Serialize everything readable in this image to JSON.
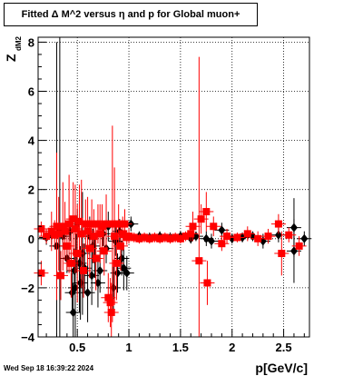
{
  "title": "Fitted Δ M^2 versus η and p for Global muon+",
  "footer": "Wed Sep 18 16:39:22 2024",
  "chart_data": {
    "type": "scatter",
    "xlabel": "p[GeV/c]",
    "ylabel": "Z",
    "ylabel_sub": "dM2",
    "xlim": [
      0.12,
      2.75
    ],
    "ylim": [
      -4.0,
      8.2
    ],
    "xticks": [
      0.5,
      1,
      1.5,
      2,
      2.5
    ],
    "xtick_labels": [
      "0.5",
      "1",
      "1.5",
      "2",
      "2.5"
    ],
    "yticks": [
      -4,
      -2,
      0,
      2,
      4,
      6,
      8
    ],
    "ytick_labels": [
      "−4",
      "−2",
      "0",
      "2",
      "4",
      "6",
      "8"
    ],
    "grid": true,
    "colors": {
      "black_series": "#000000",
      "red_series": "#ff0000"
    },
    "series": [
      {
        "color": "black",
        "marker": "diamond",
        "points": [
          {
            "x": 0.2,
            "y": 0.05,
            "err": 0.3
          },
          {
            "x": 0.25,
            "y": 0.15,
            "err": 0.4
          },
          {
            "x": 0.3,
            "y": -0.3,
            "err": 8.3
          },
          {
            "x": 0.33,
            "y": 0.4,
            "err": 8.3
          },
          {
            "x": 0.36,
            "y": 0.1,
            "err": 0.5
          },
          {
            "x": 0.4,
            "y": -0.8,
            "err": 0.6
          },
          {
            "x": 0.43,
            "y": 0.3,
            "err": 0.4
          },
          {
            "x": 0.45,
            "y": -2.2,
            "err": 0.8
          },
          {
            "x": 0.46,
            "y": -3.0,
            "err": 1.2
          },
          {
            "x": 0.47,
            "y": -1.3,
            "err": 0.9
          },
          {
            "x": 0.48,
            "y": -2.0,
            "err": 3.0
          },
          {
            "x": 0.49,
            "y": -0.6,
            "err": 0.8
          },
          {
            "x": 0.5,
            "y": 0.6,
            "err": 0.6
          },
          {
            "x": 0.52,
            "y": -1.0,
            "err": 2.0
          },
          {
            "x": 0.53,
            "y": -1.8,
            "err": 1.5
          },
          {
            "x": 0.55,
            "y": -0.6,
            "err": 2.5
          },
          {
            "x": 0.57,
            "y": -1.2,
            "err": 1.0
          },
          {
            "x": 0.6,
            "y": -2.2,
            "err": 1.2
          },
          {
            "x": 0.62,
            "y": 0.1,
            "err": 0.8
          },
          {
            "x": 0.64,
            "y": -1.5,
            "err": 1.2
          },
          {
            "x": 0.65,
            "y": -0.3,
            "err": 0.7
          },
          {
            "x": 0.67,
            "y": -0.8,
            "err": 0.8
          },
          {
            "x": 0.7,
            "y": -1.8,
            "err": 1.0
          },
          {
            "x": 0.72,
            "y": -1.3,
            "err": 0.9
          },
          {
            "x": 0.75,
            "y": 0.2,
            "err": 0.5
          },
          {
            "x": 0.78,
            "y": -0.4,
            "err": 0.6
          },
          {
            "x": 0.8,
            "y": 0.5,
            "err": 0.6
          },
          {
            "x": 0.85,
            "y": -2.0,
            "err": 0.9
          },
          {
            "x": 0.87,
            "y": -0.1,
            "err": 0.6
          },
          {
            "x": 0.89,
            "y": -1.4,
            "err": 0.8
          },
          {
            "x": 0.91,
            "y": 0.3,
            "err": 0.5
          },
          {
            "x": 0.93,
            "y": -0.8,
            "err": 0.7
          },
          {
            "x": 0.95,
            "y": -1.2,
            "err": 0.9
          },
          {
            "x": 0.98,
            "y": -1.4,
            "err": 0.7
          },
          {
            "x": 1.02,
            "y": 0.6,
            "err": 0.3
          },
          {
            "x": 1.1,
            "y": 0.1,
            "err": 0.2
          },
          {
            "x": 1.2,
            "y": 0.05,
            "err": 0.2
          },
          {
            "x": 1.3,
            "y": 0.1,
            "err": 0.2
          },
          {
            "x": 1.4,
            "y": 0.05,
            "err": 0.2
          },
          {
            "x": 1.5,
            "y": 0.1,
            "err": 0.2
          },
          {
            "x": 1.6,
            "y": 0.0,
            "err": 0.2
          },
          {
            "x": 1.65,
            "y": 0.1,
            "err": 0.2
          },
          {
            "x": 1.75,
            "y": 0.0,
            "err": 0.3
          },
          {
            "x": 1.8,
            "y": -0.1,
            "err": 0.3
          },
          {
            "x": 1.9,
            "y": 0.35,
            "err": 0.3
          },
          {
            "x": 2.0,
            "y": 0.0,
            "err": 0.2
          },
          {
            "x": 2.1,
            "y": 0.05,
            "err": 0.2
          },
          {
            "x": 2.2,
            "y": 0.1,
            "err": 0.2
          },
          {
            "x": 2.3,
            "y": -0.1,
            "err": 0.3
          },
          {
            "x": 2.45,
            "y": 0.15,
            "err": 0.3
          },
          {
            "x": 2.6,
            "y": 0.45,
            "err": 1.2
          },
          {
            "x": 2.6,
            "y": -0.5,
            "err": 1.3
          },
          {
            "x": 2.7,
            "y": 0.0,
            "err": 0.3
          }
        ]
      },
      {
        "color": "red",
        "marker": "square",
        "points": [
          {
            "x": 0.15,
            "y": 0.4,
            "err": 0.3
          },
          {
            "x": 0.15,
            "y": -1.4,
            "err": 0.5
          },
          {
            "x": 0.2,
            "y": 0.1,
            "err": 0.3
          },
          {
            "x": 0.25,
            "y": 0.3,
            "err": 0.8
          },
          {
            "x": 0.28,
            "y": 0.15,
            "err": 0.6
          },
          {
            "x": 0.3,
            "y": 0.5,
            "err": 3.0
          },
          {
            "x": 0.32,
            "y": 0.2,
            "err": 1.5
          },
          {
            "x": 0.34,
            "y": -1.5,
            "err": 1.0
          },
          {
            "x": 0.36,
            "y": 0.5,
            "err": 1.8
          },
          {
            "x": 0.38,
            "y": 0.3,
            "err": 1.2
          },
          {
            "x": 0.4,
            "y": -0.3,
            "err": 1.0
          },
          {
            "x": 0.42,
            "y": 0.6,
            "err": 2.0
          },
          {
            "x": 0.44,
            "y": -1.0,
            "err": 1.4
          },
          {
            "x": 0.46,
            "y": 0.8,
            "err": 1.5
          },
          {
            "x": 0.48,
            "y": 0.4,
            "err": 1.8
          },
          {
            "x": 0.5,
            "y": -0.6,
            "err": 2.0
          },
          {
            "x": 0.52,
            "y": 0.7,
            "err": 1.5
          },
          {
            "x": 0.54,
            "y": 0.2,
            "err": 2.2
          },
          {
            "x": 0.56,
            "y": -1.3,
            "err": 1.1
          },
          {
            "x": 0.58,
            "y": 0.6,
            "err": 1.0
          },
          {
            "x": 0.6,
            "y": 0.3,
            "err": 1.4
          },
          {
            "x": 0.62,
            "y": -0.4,
            "err": 1.2
          },
          {
            "x": 0.64,
            "y": 0.6,
            "err": 1.0
          },
          {
            "x": 0.66,
            "y": 0.1,
            "err": 1.1
          },
          {
            "x": 0.68,
            "y": -0.8,
            "err": 1.3
          },
          {
            "x": 0.7,
            "y": 0.6,
            "err": 0.8
          },
          {
            "x": 0.72,
            "y": 0.2,
            "err": 1.2
          },
          {
            "x": 0.74,
            "y": 0.5,
            "err": 0.9
          },
          {
            "x": 0.76,
            "y": -0.5,
            "err": 1.0
          },
          {
            "x": 0.78,
            "y": 0.6,
            "err": 1.2
          },
          {
            "x": 0.8,
            "y": -2.4,
            "err": 1.0
          },
          {
            "x": 0.82,
            "y": -2.6,
            "err": 1.0
          },
          {
            "x": 0.83,
            "y": -3.0,
            "err": 1.2
          },
          {
            "x": 0.84,
            "y": 0.6,
            "err": 4.0
          },
          {
            "x": 0.86,
            "y": 0.1,
            "err": 2.8
          },
          {
            "x": 0.88,
            "y": -1.0,
            "err": 1.5
          },
          {
            "x": 0.9,
            "y": 0.6,
            "err": 0.8
          },
          {
            "x": 0.92,
            "y": -0.3,
            "err": 1.0
          },
          {
            "x": 0.94,
            "y": 0.2,
            "err": 0.7
          },
          {
            "x": 0.96,
            "y": 0.6,
            "err": 0.6
          },
          {
            "x": 0.98,
            "y": 0.05,
            "err": 0.3
          },
          {
            "x": 1.0,
            "y": 0.1,
            "err": 0.3
          },
          {
            "x": 1.05,
            "y": 0.05,
            "err": 0.2
          },
          {
            "x": 1.1,
            "y": 0.0,
            "err": 0.2
          },
          {
            "x": 1.15,
            "y": 0.05,
            "err": 0.2
          },
          {
            "x": 1.2,
            "y": 0.0,
            "err": 0.2
          },
          {
            "x": 1.25,
            "y": 0.05,
            "err": 0.2
          },
          {
            "x": 1.3,
            "y": 0.0,
            "err": 0.2
          },
          {
            "x": 1.35,
            "y": 0.05,
            "err": 0.2
          },
          {
            "x": 1.4,
            "y": 0.0,
            "err": 0.2
          },
          {
            "x": 1.45,
            "y": 0.05,
            "err": 0.2
          },
          {
            "x": 1.5,
            "y": 0.0,
            "err": 0.2
          },
          {
            "x": 1.55,
            "y": 0.1,
            "err": 0.2
          },
          {
            "x": 1.6,
            "y": 0.2,
            "err": 0.3
          },
          {
            "x": 1.62,
            "y": 0.5,
            "err": 0.6
          },
          {
            "x": 1.68,
            "y": -0.9,
            "err": 8.3
          },
          {
            "x": 1.7,
            "y": 0.8,
            "err": 0.6
          },
          {
            "x": 1.75,
            "y": 1.1,
            "err": 0.8
          },
          {
            "x": 1.76,
            "y": -1.8,
            "err": 0.9
          },
          {
            "x": 1.82,
            "y": 0.5,
            "err": 0.4
          },
          {
            "x": 1.9,
            "y": -0.2,
            "err": 0.3
          },
          {
            "x": 1.95,
            "y": 0.1,
            "err": 0.3
          },
          {
            "x": 2.05,
            "y": 0.05,
            "err": 0.2
          },
          {
            "x": 2.15,
            "y": 0.2,
            "err": 0.3
          },
          {
            "x": 2.25,
            "y": 0.0,
            "err": 0.3
          },
          {
            "x": 2.35,
            "y": 0.1,
            "err": 0.3
          },
          {
            "x": 2.45,
            "y": 0.6,
            "err": 0.4
          },
          {
            "x": 2.48,
            "y": -0.6,
            "err": 0.9
          },
          {
            "x": 2.55,
            "y": 0.15,
            "err": 0.3
          },
          {
            "x": 2.65,
            "y": -0.3,
            "err": 0.4
          }
        ]
      }
    ]
  }
}
